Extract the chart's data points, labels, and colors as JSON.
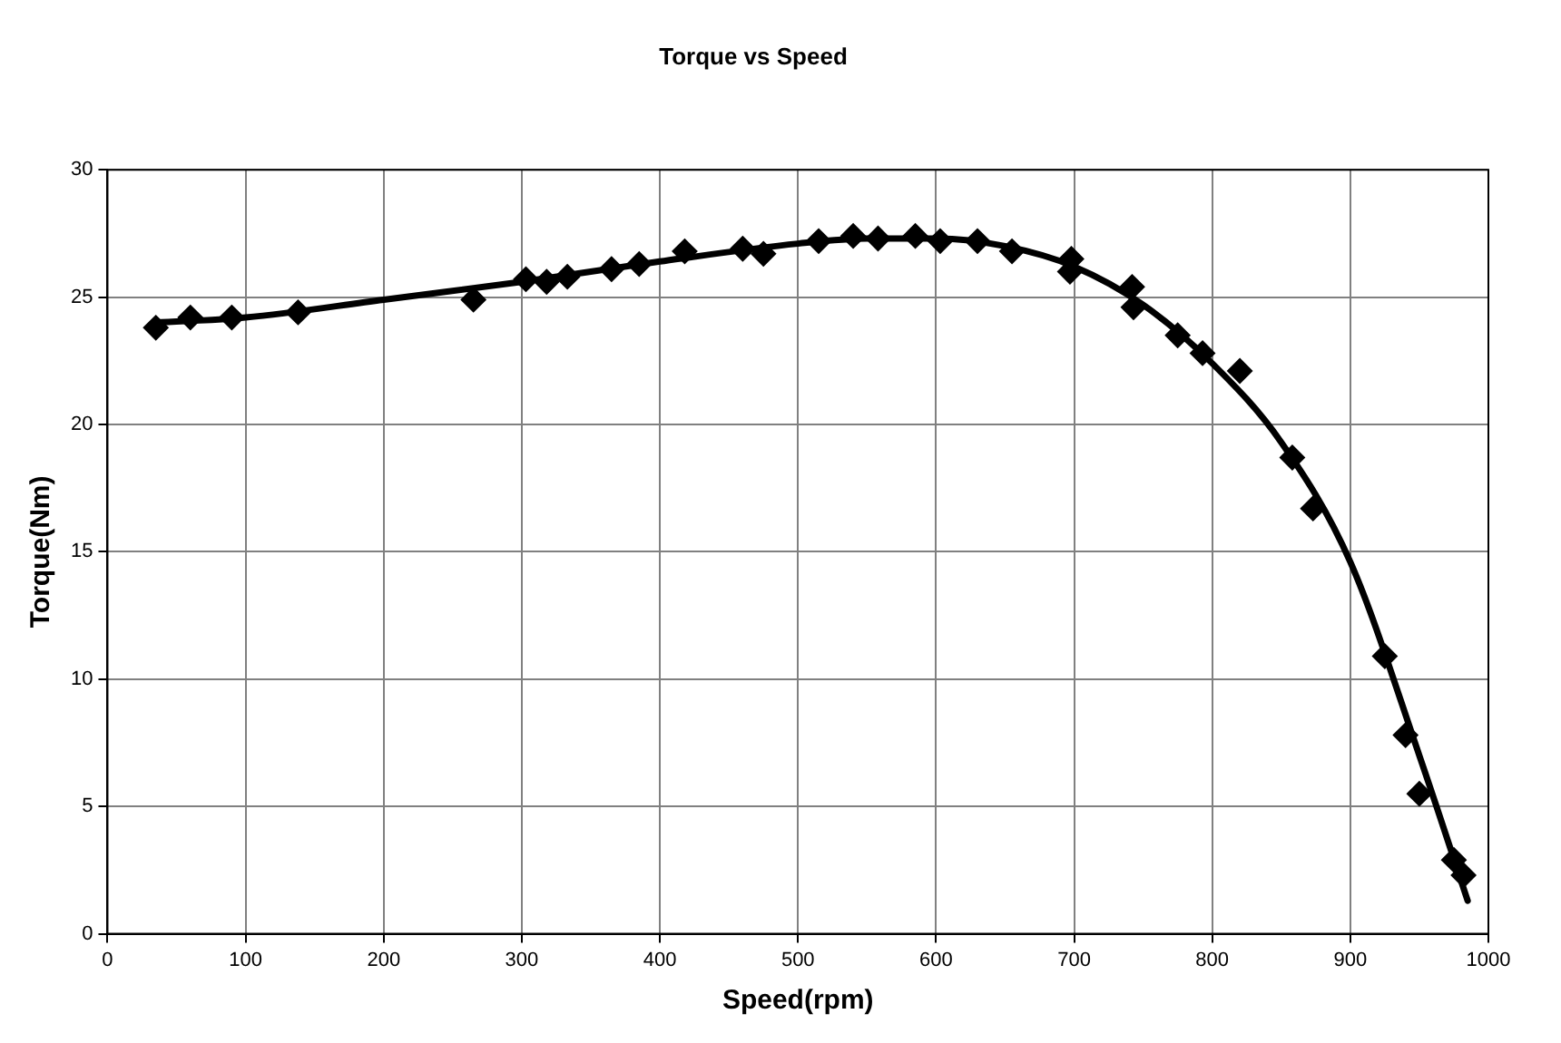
{
  "chart_data": {
    "type": "scatter",
    "title": "Torque vs Speed",
    "xlabel": "Speed(rpm)",
    "ylabel": "Torque(Nm)",
    "xlim": [
      0,
      1000
    ],
    "xticks": [
      0,
      100,
      200,
      300,
      400,
      500,
      600,
      700,
      800,
      900,
      1000
    ],
    "ylim": [
      0,
      30
    ],
    "yticks": [
      0,
      5,
      10,
      15,
      20,
      25,
      30
    ],
    "grid": true,
    "legend": false,
    "series": [
      {
        "type": "scatter",
        "color": "#000000",
        "marker": "diamond",
        "x": [
          35,
          60,
          90,
          138,
          265,
          303,
          318,
          333,
          365,
          385,
          418,
          460,
          475,
          515,
          540,
          558,
          585,
          603,
          630,
          655,
          697,
          698,
          742,
          743,
          775,
          793,
          820,
          858,
          873,
          925,
          940,
          950,
          975,
          982
        ],
        "values": [
          23.8,
          24.2,
          24.2,
          24.4,
          24.9,
          25.7,
          25.6,
          25.8,
          26.1,
          26.3,
          26.8,
          26.9,
          26.7,
          27.2,
          27.4,
          27.3,
          27.4,
          27.2,
          27.2,
          26.8,
          26.0,
          26.5,
          25.4,
          24.6,
          23.5,
          22.8,
          22.1,
          18.7,
          16.7,
          10.9,
          7.8,
          5.5,
          2.9,
          2.3
        ]
      },
      {
        "type": "line",
        "color": "#000000",
        "line_style": "solid",
        "x": [
          35,
          100,
          200,
          300,
          400,
          500,
          550,
          600,
          650,
          700,
          750,
          800,
          850,
          900,
          950,
          985
        ],
        "values": [
          24.0,
          24.2,
          24.9,
          25.6,
          26.4,
          27.1,
          27.3,
          27.3,
          27.0,
          26.2,
          24.7,
          22.4,
          19.3,
          14.6,
          7.0,
          1.3
        ]
      }
    ]
  }
}
